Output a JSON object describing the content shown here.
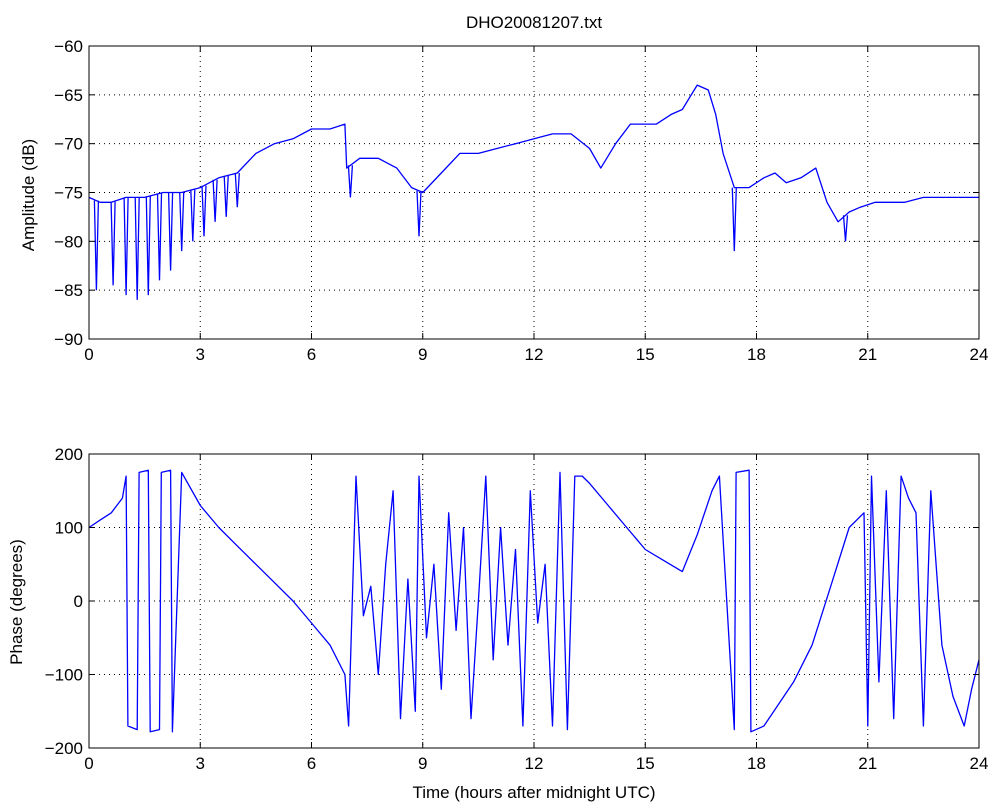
{
  "figure": {
    "background": "#ffffff",
    "trace_color": "#0000ff"
  },
  "chart_data": [
    {
      "type": "line",
      "title": "DHO20081207.txt",
      "xlabel": "",
      "ylabel": "Amplitude (dB)",
      "xlim": [
        0,
        24
      ],
      "ylim": [
        -90,
        -60
      ],
      "xticks": [
        0,
        3,
        6,
        9,
        12,
        15,
        18,
        21,
        24
      ],
      "yticks": [
        -90,
        -85,
        -80,
        -75,
        -70,
        -65,
        -60
      ],
      "grid": true,
      "x": [
        0,
        0.3,
        0.6,
        1.0,
        1.5,
        2.0,
        2.5,
        3.0,
        3.5,
        4.0,
        4.5,
        5.0,
        5.5,
        6.0,
        6.5,
        6.9,
        6.95,
        7.3,
        7.8,
        8.3,
        8.7,
        9.0,
        9.5,
        10.0,
        10.5,
        11.0,
        11.5,
        12.0,
        12.5,
        13.0,
        13.5,
        13.8,
        14.2,
        14.6,
        15.0,
        15.3,
        15.7,
        16.0,
        16.4,
        16.7,
        16.9,
        17.1,
        17.4,
        17.8,
        18.2,
        18.5,
        18.8,
        19.2,
        19.6,
        19.9,
        20.2,
        20.5,
        20.8,
        21.2,
        21.6,
        22.0,
        22.5,
        23.0,
        23.5,
        24.0
      ],
      "values": [
        -75.5,
        -76,
        -76,
        -75.5,
        -75.5,
        -75,
        -75,
        -74.5,
        -73.5,
        -73,
        -71,
        -70,
        -69.5,
        -68.5,
        -68.5,
        -68,
        -72.5,
        -71.5,
        -71.5,
        -72.5,
        -74.5,
        -75,
        -73,
        -71,
        -71,
        -70.5,
        -70,
        -69.5,
        -69,
        -69,
        -70.5,
        -72.5,
        -70,
        -68,
        -68,
        -68,
        -67,
        -66.5,
        -64,
        -64.5,
        -67,
        -71,
        -74.5,
        -74.5,
        -73.5,
        -73,
        -74,
        -73.5,
        -72.5,
        -76,
        -78,
        -77,
        -76.5,
        -76,
        -76,
        -76,
        -75.5,
        -75.5,
        -75.5,
        -75.5
      ],
      "spikes": [
        {
          "x": 0.2,
          "y": -85
        },
        {
          "x": 0.65,
          "y": -84.5
        },
        {
          "x": 1.0,
          "y": -85.5
        },
        {
          "x": 1.3,
          "y": -86
        },
        {
          "x": 1.6,
          "y": -85.5
        },
        {
          "x": 1.9,
          "y": -84
        },
        {
          "x": 2.2,
          "y": -83
        },
        {
          "x": 2.5,
          "y": -81
        },
        {
          "x": 2.8,
          "y": -80
        },
        {
          "x": 3.1,
          "y": -79.5
        },
        {
          "x": 3.4,
          "y": -78
        },
        {
          "x": 3.7,
          "y": -77.5
        },
        {
          "x": 4.0,
          "y": -76.5
        },
        {
          "x": 7.05,
          "y": -75.5
        },
        {
          "x": 8.9,
          "y": -79.5
        },
        {
          "x": 17.4,
          "y": -81
        },
        {
          "x": 20.4,
          "y": -80
        }
      ]
    },
    {
      "type": "line",
      "title": "",
      "xlabel": "Time (hours after midnight UTC)",
      "ylabel": "Phase (degrees)",
      "xlim": [
        0,
        24
      ],
      "ylim": [
        -200,
        200
      ],
      "xticks": [
        0,
        3,
        6,
        9,
        12,
        15,
        18,
        21,
        24
      ],
      "yticks": [
        -200,
        -100,
        0,
        100,
        200
      ],
      "grid": true,
      "x": [
        0,
        0.3,
        0.6,
        0.9,
        1.0,
        1.05,
        1.3,
        1.35,
        1.6,
        1.65,
        1.9,
        1.95,
        2.2,
        2.25,
        2.5,
        3.0,
        3.5,
        4.0,
        4.5,
        5.0,
        5.5,
        6.0,
        6.5,
        6.9,
        7.0,
        7.2,
        7.4,
        7.6,
        7.8,
        8.0,
        8.2,
        8.4,
        8.6,
        8.8,
        8.9,
        9.1,
        9.3,
        9.5,
        9.7,
        9.9,
        10.1,
        10.3,
        10.5,
        10.7,
        10.9,
        11.1,
        11.3,
        11.5,
        11.7,
        11.9,
        12.1,
        12.3,
        12.5,
        12.7,
        12.9,
        13.1,
        13.3,
        13.5,
        14.0,
        14.5,
        15.0,
        15.5,
        16.0,
        16.4,
        16.8,
        17.0,
        17.4,
        17.45,
        17.8,
        17.85,
        18.2,
        18.6,
        19.0,
        19.5,
        20.0,
        20.5,
        20.9,
        21.0,
        21.1,
        21.3,
        21.5,
        21.7,
        21.9,
        22.1,
        22.3,
        22.5,
        22.7,
        23.0,
        23.3,
        23.6,
        23.8,
        24.0
      ],
      "values": [
        100,
        110,
        120,
        140,
        170,
        -170,
        -175,
        175,
        178,
        -178,
        -175,
        175,
        178,
        -178,
        175,
        130,
        100,
        75,
        50,
        25,
        0,
        -30,
        -60,
        -100,
        -170,
        170,
        -20,
        20,
        -100,
        50,
        150,
        -160,
        30,
        -150,
        170,
        -50,
        50,
        -120,
        120,
        -40,
        100,
        -160,
        0,
        170,
        -80,
        100,
        -60,
        70,
        -170,
        150,
        -30,
        50,
        -170,
        175,
        -175,
        170,
        170,
        160,
        130,
        100,
        70,
        55,
        40,
        90,
        150,
        170,
        -175,
        175,
        178,
        -178,
        -170,
        -140,
        -110,
        -60,
        20,
        100,
        120,
        -170,
        170,
        -110,
        150,
        -160,
        170,
        140,
        120,
        -170,
        150,
        -60,
        -130,
        -170,
        -120,
        -80
      ]
    }
  ]
}
